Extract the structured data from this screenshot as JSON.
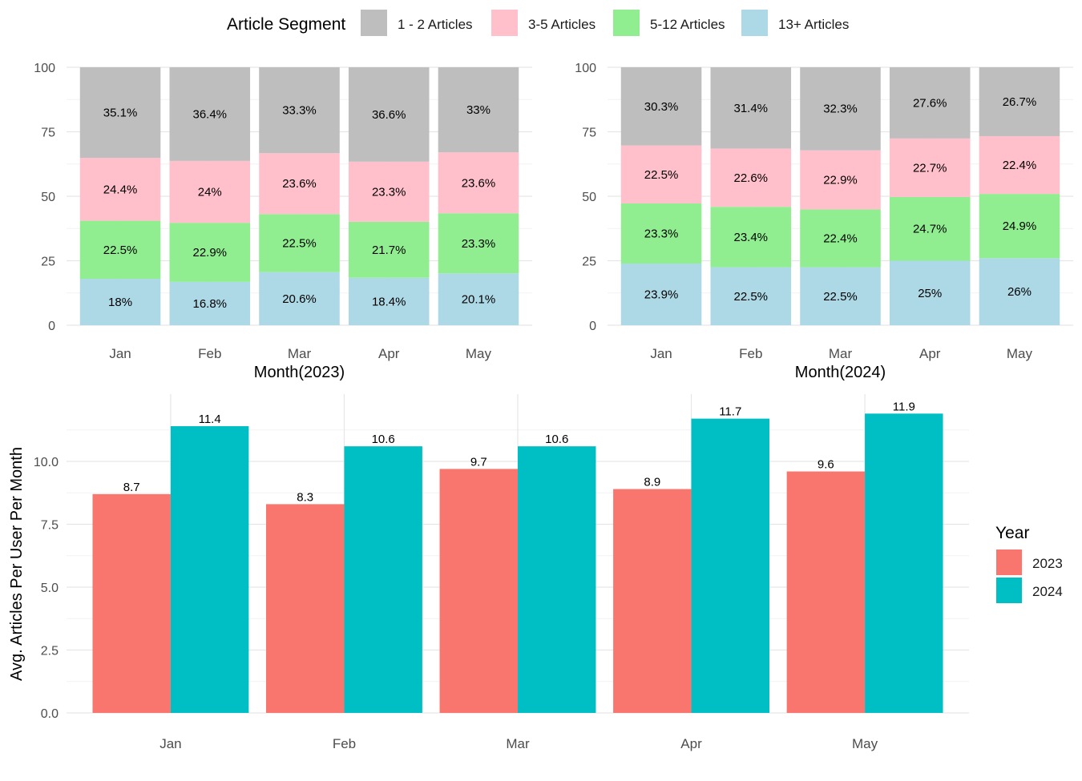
{
  "legend_top": {
    "title": "Article Segment",
    "items": [
      {
        "label": "1 - 2 Articles",
        "color": "#bebebe"
      },
      {
        "label": "3-5 Articles",
        "color": "#ffc0cb"
      },
      {
        "label": "5-12 Articles",
        "color": "#90ee90"
      },
      {
        "label": "13+ Articles",
        "color": "#add8e6"
      }
    ]
  },
  "legend_bottom": {
    "title": "Year",
    "items": [
      {
        "label": "2023",
        "color": "#f8766d"
      },
      {
        "label": "2024",
        "color": "#00bfc4"
      }
    ]
  },
  "chart_data": [
    {
      "type": "bar",
      "stacked": true,
      "xlabel": "Month(2023)",
      "ylabel": "",
      "ylim": [
        0,
        100
      ],
      "yticks": [
        0,
        25,
        50,
        75,
        100
      ],
      "categories": [
        "Jan",
        "Feb",
        "Mar",
        "Apr",
        "May"
      ],
      "series": [
        {
          "name": "13+ Articles",
          "values": [
            18,
            16.8,
            20.6,
            18.4,
            20.1
          ],
          "labels": [
            "18%",
            "16.8%",
            "20.6%",
            "18.4%",
            "20.1%"
          ]
        },
        {
          "name": "5-12 Articles",
          "values": [
            22.5,
            22.9,
            22.5,
            21.7,
            23.3
          ],
          "labels": [
            "22.5%",
            "22.9%",
            "22.5%",
            "21.7%",
            "23.3%"
          ]
        },
        {
          "name": "3-5 Articles",
          "values": [
            24.4,
            24,
            23.6,
            23.3,
            23.6
          ],
          "labels": [
            "24.4%",
            "24%",
            "23.6%",
            "23.3%",
            "23.6%"
          ]
        },
        {
          "name": "1 - 2 Articles",
          "values": [
            35.1,
            36.4,
            33.3,
            36.6,
            33
          ],
          "labels": [
            "35.1%",
            "36.4%",
            "33.3%",
            "36.6%",
            "33%"
          ]
        }
      ]
    },
    {
      "type": "bar",
      "stacked": true,
      "xlabel": "Month(2024)",
      "ylabel": "",
      "ylim": [
        0,
        100
      ],
      "yticks": [
        0,
        25,
        50,
        75,
        100
      ],
      "categories": [
        "Jan",
        "Feb",
        "Mar",
        "Apr",
        "May"
      ],
      "series": [
        {
          "name": "13+ Articles",
          "values": [
            23.9,
            22.5,
            22.5,
            25,
            26
          ],
          "labels": [
            "23.9%",
            "22.5%",
            "22.5%",
            "25%",
            "26%"
          ]
        },
        {
          "name": "5-12 Articles",
          "values": [
            23.3,
            23.4,
            22.4,
            24.7,
            24.9
          ],
          "labels": [
            "23.3%",
            "23.4%",
            "22.4%",
            "24.7%",
            "24.9%"
          ]
        },
        {
          "name": "3-5 Articles",
          "values": [
            22.5,
            22.6,
            22.9,
            22.7,
            22.4
          ],
          "labels": [
            "22.5%",
            "22.6%",
            "22.9%",
            "22.7%",
            "22.4%"
          ]
        },
        {
          "name": "1 - 2 Articles",
          "values": [
            30.3,
            31.4,
            32.3,
            27.6,
            26.7
          ],
          "labels": [
            "30.3%",
            "31.4%",
            "32.3%",
            "27.6%",
            "26.7%"
          ]
        }
      ]
    },
    {
      "type": "bar",
      "grouped": true,
      "xlabel": "",
      "ylabel": "Avg. Articles Per User Per Month",
      "ylim": [
        0,
        12
      ],
      "yticks": [
        0,
        2.5,
        5,
        7.5,
        10
      ],
      "ytick_labels": [
        "0.0",
        "2.5",
        "5.0",
        "7.5",
        "10.0"
      ],
      "categories": [
        "Jan",
        "Feb",
        "Mar",
        "Apr",
        "May"
      ],
      "series": [
        {
          "name": "2023",
          "values": [
            8.7,
            8.3,
            9.7,
            8.9,
            9.6
          ],
          "labels": [
            "8.7",
            "8.3",
            "9.7",
            "8.9",
            "9.6"
          ]
        },
        {
          "name": "2024",
          "values": [
            11.4,
            10.6,
            10.6,
            11.7,
            11.9
          ],
          "labels": [
            "11.4",
            "10.6",
            "10.6",
            "11.7",
            "11.9"
          ]
        }
      ]
    }
  ]
}
